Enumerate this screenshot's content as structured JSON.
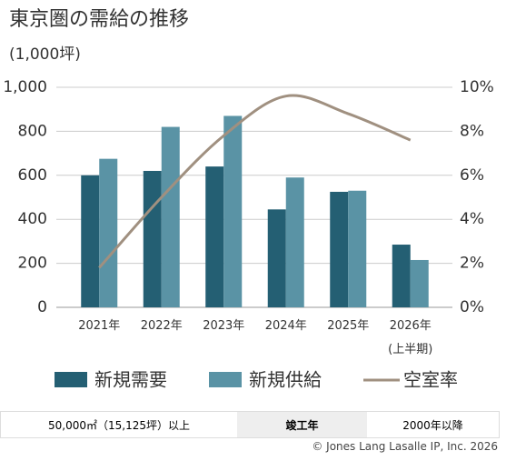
{
  "chart_data": {
    "type": "bar_line",
    "title": "東京圏の需給の推移",
    "y_label": "(1,000坪)",
    "categories": [
      "2021年",
      "2022年",
      "2023年",
      "2024年",
      "2025年",
      "2026年\n(上半期)"
    ],
    "series": [
      {
        "name": "新規需要",
        "color": "#245f73",
        "values": [
          600,
          620,
          640,
          445,
          525,
          285
        ]
      },
      {
        "name": "新規供給",
        "color": "#5a93a5",
        "values": [
          675,
          820,
          870,
          590,
          530,
          215
        ]
      },
      {
        "name": "空室率",
        "color": "#a09080",
        "axis": "y2",
        "type": "line",
        "values": [
          1.8,
          5.0,
          7.8,
          9.6,
          8.8,
          7.6
        ]
      }
    ],
    "ylim": [
      0,
      1000
    ],
    "yticks": [
      0,
      200,
      400,
      600,
      800,
      {
        "value": 1000,
        "label": "1,000"
      }
    ],
    "y2lim": [
      0,
      10
    ],
    "y2ticks": [
      {
        "value": 0,
        "label": "0%"
      },
      {
        "value": 2,
        "label": "2%"
      },
      {
        "value": 4,
        "label": "4%"
      },
      {
        "value": 6,
        "label": "6%"
      },
      {
        "value": 8,
        "label": "8%"
      },
      {
        "value": 10,
        "label": "10%"
      }
    ],
    "grid": true
  },
  "footer": {
    "cells": [
      "50,000㎡（15,125坪）以上",
      "竣工年",
      "2000年以降"
    ],
    "copyright": "© Jones Lang Lasalle IP, Inc. 2026"
  }
}
